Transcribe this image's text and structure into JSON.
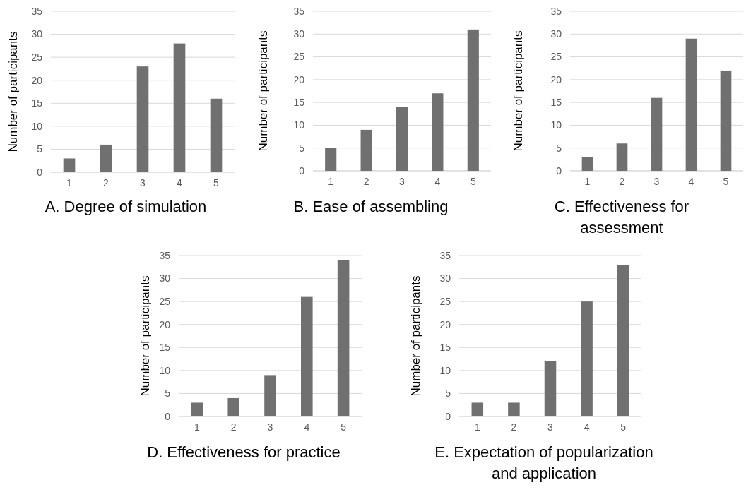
{
  "chart_data": [
    {
      "type": "bar",
      "title": "A. Degree of simulation",
      "ylabel": "Number of participants",
      "categories": [
        "1",
        "2",
        "3",
        "4",
        "5"
      ],
      "values": [
        3,
        6,
        23,
        28,
        16
      ],
      "color": "#707070",
      "ylim": [
        0,
        35
      ],
      "yticks": [
        0,
        5,
        10,
        15,
        20,
        25,
        30,
        35
      ],
      "grid": "y"
    },
    {
      "type": "bar",
      "title": "B. Ease of assembling",
      "ylabel": "Number of participants",
      "categories": [
        "1",
        "2",
        "3",
        "4",
        "5"
      ],
      "values": [
        5,
        9,
        14,
        17,
        31
      ],
      "color": "#707070",
      "ylim": [
        0,
        35
      ],
      "yticks": [
        0,
        5,
        10,
        15,
        20,
        25,
        30,
        35
      ],
      "grid": "y"
    },
    {
      "type": "bar",
      "title": "C. Effectiveness for assessment",
      "ylabel": "Number of participants",
      "categories": [
        "1",
        "2",
        "3",
        "4",
        "5"
      ],
      "values": [
        3,
        6,
        16,
        29,
        22
      ],
      "color": "#707070",
      "ylim": [
        0,
        35
      ],
      "yticks": [
        0,
        5,
        10,
        15,
        20,
        25,
        30,
        35
      ],
      "grid": "y"
    },
    {
      "type": "bar",
      "title": "D. Effectiveness for practice",
      "ylabel": "Number of participants",
      "categories": [
        "1",
        "2",
        "3",
        "4",
        "5"
      ],
      "values": [
        3,
        4,
        9,
        26,
        34
      ],
      "color": "#707070",
      "ylim": [
        0,
        35
      ],
      "yticks": [
        0,
        5,
        10,
        15,
        20,
        25,
        30,
        35
      ],
      "grid": "y"
    },
    {
      "type": "bar",
      "title": "E. Expectation of popularization and application",
      "ylabel": "Number of participants",
      "categories": [
        "1",
        "2",
        "3",
        "4",
        "5"
      ],
      "values": [
        3,
        3,
        12,
        25,
        33
      ],
      "color": "#707070",
      "ylim": [
        0,
        35
      ],
      "yticks": [
        0,
        5,
        10,
        15,
        20,
        25,
        30,
        35
      ],
      "grid": "y"
    }
  ]
}
